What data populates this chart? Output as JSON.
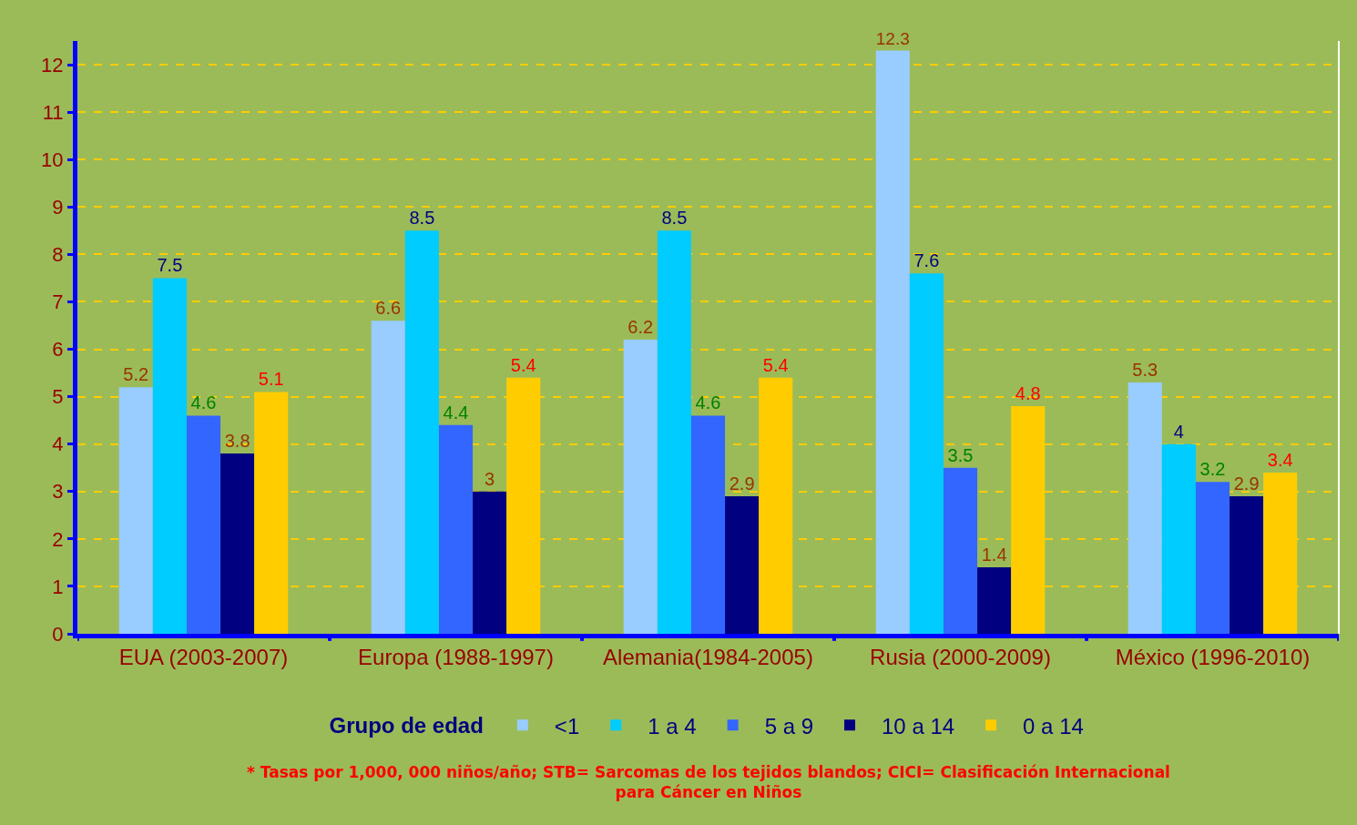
{
  "chart_data": {
    "type": "bar",
    "categories": [
      "EUA (2003-2007)",
      "Europa (1988-1997)",
      "Alemania(1984-2005)",
      "Rusia (2000-2009)",
      "México (1996-2010)"
    ],
    "series": [
      {
        "name": "<1",
        "color": "#99ccff",
        "values": [
          5.2,
          6.6,
          6.2,
          12.3,
          5.3
        ]
      },
      {
        "name": "1 a 4",
        "color": "#00ccff",
        "values": [
          7.5,
          8.5,
          8.5,
          7.6,
          4
        ]
      },
      {
        "name": "5 a 9",
        "color": "#3366ff",
        "values": [
          4.6,
          4.4,
          4.6,
          3.5,
          3.2
        ]
      },
      {
        "name": "10 a 14",
        "color": "#000080",
        "values": [
          3.8,
          3,
          2.9,
          1.4,
          2.9
        ]
      },
      {
        "name": "0 a 14",
        "color": "#ffcc00",
        "values": [
          5.1,
          5.4,
          5.4,
          4.8,
          3.4
        ]
      }
    ],
    "legend_title": "Grupo de edad",
    "legend": "bottom",
    "data_labels": true,
    "ylim": [
      0,
      12.5
    ],
    "yticks": [
      0,
      1,
      2,
      3,
      4,
      5,
      6,
      7,
      8,
      9,
      10,
      11,
      12
    ],
    "grid": "y",
    "annotations": [
      "* Tasas por 1,000, 000 niños/año; STB= Sarcomas de los tejidos blandos; CICI= Clasificación Internacional\npara Cáncer en Niños"
    ]
  }
}
